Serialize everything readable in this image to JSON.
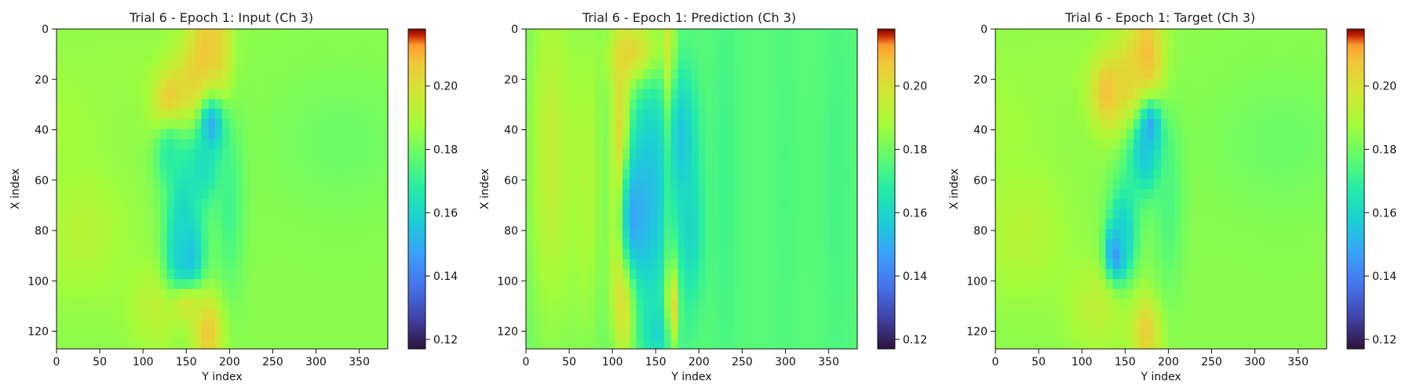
{
  "figure": {
    "background": "#ffffff",
    "colormap": "turbo"
  },
  "chart_data": [
    {
      "type": "heatmap",
      "title": "Trial 6 - Epoch 1: Input (Ch 3)",
      "xlabel": "Y index",
      "ylabel": "X index",
      "xlim": [
        0,
        383
      ],
      "ylim": [
        127,
        0
      ],
      "x_ticks": [
        0,
        50,
        100,
        150,
        200,
        250,
        300,
        350
      ],
      "y_ticks": [
        0,
        20,
        40,
        60,
        80,
        100,
        120
      ],
      "colorbar": {
        "vmin": 0.117,
        "vmax": 0.218,
        "ticks": [
          "0.12",
          "0.14",
          "0.16",
          "0.18",
          "0.20"
        ],
        "tick_values": [
          0.12,
          0.14,
          0.16,
          0.18,
          0.2
        ]
      },
      "base_value": 0.184,
      "background_features": [
        {
          "x": 30,
          "y": 80,
          "rx": 35,
          "ry": 18,
          "v": 0.192
        },
        {
          "x": 0,
          "y": 35,
          "rx": 40,
          "ry": 18,
          "v": 0.188
        },
        {
          "x": 120,
          "y": 110,
          "rx": 25,
          "ry": 12,
          "v": 0.194
        },
        {
          "x": 330,
          "y": 45,
          "rx": 60,
          "ry": 20,
          "v": 0.179
        },
        {
          "x": 80,
          "y": 15,
          "rx": 50,
          "ry": 15,
          "v": 0.186
        }
      ],
      "features": [
        {
          "x": 175,
          "y": 12,
          "rx": 14,
          "ry": 16,
          "v": 0.212
        },
        {
          "x": 135,
          "y": 30,
          "rx": 15,
          "ry": 9,
          "v": 0.215
        },
        {
          "x": 160,
          "y": 25,
          "rx": 18,
          "ry": 14,
          "v": 0.207
        },
        {
          "x": 185,
          "y": 8,
          "rx": 10,
          "ry": 20,
          "v": 0.205
        },
        {
          "x": 180,
          "y": 40,
          "rx": 11,
          "ry": 9,
          "v": 0.14
        },
        {
          "x": 170,
          "y": 55,
          "rx": 16,
          "ry": 12,
          "v": 0.162
        },
        {
          "x": 150,
          "y": 90,
          "rx": 14,
          "ry": 12,
          "v": 0.145
        },
        {
          "x": 145,
          "y": 75,
          "rx": 12,
          "ry": 22,
          "v": 0.16
        },
        {
          "x": 130,
          "y": 50,
          "rx": 12,
          "ry": 10,
          "v": 0.168
        },
        {
          "x": 200,
          "y": 70,
          "rx": 12,
          "ry": 25,
          "v": 0.172
        },
        {
          "x": 175,
          "y": 120,
          "rx": 12,
          "ry": 10,
          "v": 0.208
        },
        {
          "x": 150,
          "y": 110,
          "rx": 15,
          "ry": 6,
          "v": 0.198
        }
      ]
    },
    {
      "type": "heatmap",
      "title": "Trial 6 - Epoch 1: Prediction (Ch 3)",
      "xlabel": "Y index",
      "ylabel": "X index",
      "xlim": [
        0,
        383
      ],
      "ylim": [
        127,
        0
      ],
      "x_ticks": [
        0,
        50,
        100,
        150,
        200,
        250,
        300,
        350
      ],
      "y_ticks": [
        0,
        20,
        40,
        60,
        80,
        100,
        120
      ],
      "colorbar": {
        "vmin": 0.117,
        "vmax": 0.218,
        "ticks": [
          "0.12",
          "0.14",
          "0.16",
          "0.18",
          "0.20"
        ],
        "tick_values": [
          0.12,
          0.14,
          0.16,
          0.18,
          0.2
        ]
      },
      "base_value": 0.176,
      "background_features": [
        {
          "x": 30,
          "y": 50,
          "rx": 22,
          "ry": 60,
          "v": 0.194
        },
        {
          "x": 70,
          "y": 60,
          "rx": 15,
          "ry": 55,
          "v": 0.19
        },
        {
          "x": 230,
          "y": 60,
          "rx": 10,
          "ry": 60,
          "v": 0.172
        },
        {
          "x": 300,
          "y": 60,
          "rx": 10,
          "ry": 60,
          "v": 0.174
        },
        {
          "x": 360,
          "y": 60,
          "rx": 12,
          "ry": 60,
          "v": 0.173
        }
      ],
      "features": [
        {
          "x": 110,
          "y": 55,
          "rx": 8,
          "ry": 35,
          "v": 0.214
        },
        {
          "x": 115,
          "y": 100,
          "rx": 10,
          "ry": 20,
          "v": 0.214
        },
        {
          "x": 130,
          "y": 10,
          "rx": 22,
          "ry": 10,
          "v": 0.212
        },
        {
          "x": 165,
          "y": 35,
          "rx": 5,
          "ry": 40,
          "v": 0.213
        },
        {
          "x": 145,
          "y": 65,
          "rx": 18,
          "ry": 35,
          "v": 0.155
        },
        {
          "x": 125,
          "y": 75,
          "rx": 12,
          "ry": 18,
          "v": 0.148
        },
        {
          "x": 180,
          "y": 45,
          "rx": 12,
          "ry": 20,
          "v": 0.155
        },
        {
          "x": 155,
          "y": 120,
          "rx": 15,
          "ry": 8,
          "v": 0.16
        },
        {
          "x": 170,
          "y": 110,
          "rx": 5,
          "ry": 12,
          "v": 0.205
        },
        {
          "x": 190,
          "y": 80,
          "rx": 10,
          "ry": 20,
          "v": 0.16
        }
      ]
    },
    {
      "type": "heatmap",
      "title": "Trial 6 - Epoch 1: Target (Ch 3)",
      "xlabel": "Y index",
      "ylabel": "X index",
      "xlim": [
        0,
        383
      ],
      "ylim": [
        127,
        0
      ],
      "x_ticks": [
        0,
        50,
        100,
        150,
        200,
        250,
        300,
        350
      ],
      "y_ticks": [
        0,
        20,
        40,
        60,
        80,
        100,
        120
      ],
      "colorbar": {
        "vmin": 0.117,
        "vmax": 0.218,
        "ticks": [
          "0.12",
          "0.14",
          "0.16",
          "0.18",
          "0.20"
        ],
        "tick_values": [
          0.12,
          0.14,
          0.16,
          0.18,
          0.2
        ]
      },
      "base_value": 0.184,
      "background_features": [
        {
          "x": 30,
          "y": 80,
          "rx": 35,
          "ry": 18,
          "v": 0.192
        },
        {
          "x": 0,
          "y": 35,
          "rx": 40,
          "ry": 18,
          "v": 0.188
        },
        {
          "x": 120,
          "y": 110,
          "rx": 25,
          "ry": 12,
          "v": 0.194
        },
        {
          "x": 330,
          "y": 45,
          "rx": 60,
          "ry": 20,
          "v": 0.179
        },
        {
          "x": 80,
          "y": 15,
          "rx": 50,
          "ry": 15,
          "v": 0.186
        }
      ],
      "features": [
        {
          "x": 175,
          "y": 12,
          "rx": 14,
          "ry": 16,
          "v": 0.212
        },
        {
          "x": 130,
          "y": 25,
          "rx": 14,
          "ry": 10,
          "v": 0.21
        },
        {
          "x": 155,
          "y": 22,
          "rx": 16,
          "ry": 14,
          "v": 0.205
        },
        {
          "x": 180,
          "y": 42,
          "rx": 8,
          "ry": 8,
          "v": 0.125
        },
        {
          "x": 175,
          "y": 50,
          "rx": 16,
          "ry": 12,
          "v": 0.155
        },
        {
          "x": 140,
          "y": 88,
          "rx": 8,
          "ry": 7,
          "v": 0.125
        },
        {
          "x": 148,
          "y": 80,
          "rx": 12,
          "ry": 14,
          "v": 0.158
        },
        {
          "x": 175,
          "y": 120,
          "rx": 12,
          "ry": 10,
          "v": 0.206
        },
        {
          "x": 200,
          "y": 70,
          "rx": 12,
          "ry": 25,
          "v": 0.174
        }
      ]
    }
  ]
}
